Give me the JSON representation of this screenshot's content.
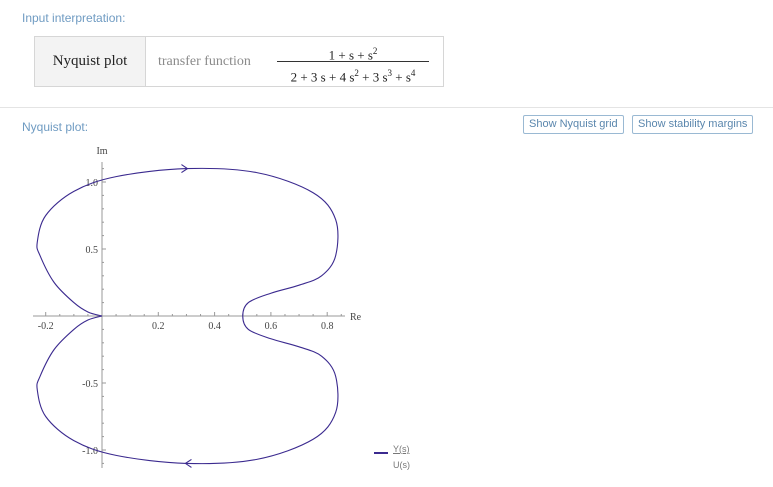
{
  "input_section": {
    "label": "Input interpretation:",
    "plot_type": "Nyquist plot",
    "function_kind": "transfer function",
    "numerator": {
      "terms": [
        "1",
        "+",
        "s",
        "+",
        "s"
      ],
      "last_exponent": "2"
    },
    "denominator": {
      "parts": [
        "2 + 3 s + 4 s",
        "2",
        " + 3 s",
        "3",
        " + s",
        "4"
      ]
    }
  },
  "plot_section": {
    "label": "Nyquist plot:",
    "buttons": {
      "nyquist_grid": "Show Nyquist grid",
      "stability_margins": "Show stability margins"
    }
  },
  "chart_data": {
    "type": "line",
    "xlabel": "Re",
    "ylabel": "Im",
    "xlim": [
      -0.25,
      0.9
    ],
    "ylim": [
      -1.1,
      1.1
    ],
    "xticks": [
      -0.2,
      0.2,
      0.4,
      0.6,
      0.8
    ],
    "xtick_labels": [
      "-0.2",
      "0.2",
      "0.4",
      "0.6",
      "0.8"
    ],
    "yticks": [
      1.0,
      0.5,
      -0.5,
      -1.0
    ],
    "ytick_labels": [
      "1.0",
      "0.5",
      "-0.5",
      "-1.0"
    ],
    "curve_color": "#3b2a8f",
    "series": [
      {
        "name": "Y(s)/U(s)",
        "x": [
          0,
          -0.05,
          -0.1,
          -0.17,
          -0.22,
          -0.23,
          -0.2,
          -0.1,
          0.05,
          0.3,
          0.55,
          0.75,
          0.83,
          0.83,
          0.78,
          0.7,
          0.6,
          0.52,
          0.5,
          0.52,
          0.6,
          0.7,
          0.78,
          0.83,
          0.83,
          0.75,
          0.55,
          0.3,
          0.05,
          -0.1,
          -0.2,
          -0.23,
          -0.22,
          -0.17,
          -0.1,
          -0.05,
          0
        ],
        "y": [
          0,
          0.03,
          0.1,
          0.25,
          0.45,
          0.55,
          0.75,
          0.93,
          1.04,
          1.1,
          1.07,
          0.92,
          0.72,
          0.45,
          0.3,
          0.23,
          0.17,
          0.1,
          0,
          -0.1,
          -0.17,
          -0.23,
          -0.3,
          -0.45,
          -0.72,
          -0.92,
          -1.07,
          -1.1,
          -1.04,
          -0.93,
          -0.75,
          -0.55,
          -0.45,
          -0.25,
          -0.1,
          -0.03,
          0
        ]
      }
    ],
    "legend": {
      "numerator": "Y(s)",
      "denominator": "U(s)"
    }
  }
}
